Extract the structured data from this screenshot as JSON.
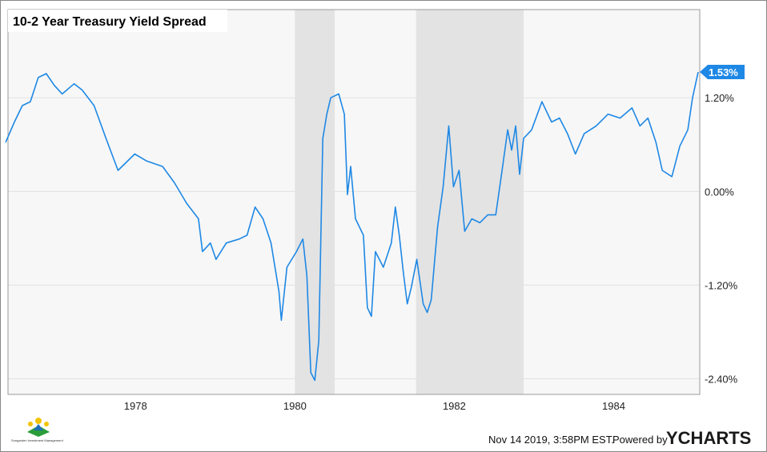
{
  "chart_data": {
    "type": "line",
    "title": "10-2 Year Treasury Yield Spread",
    "xlabel": "",
    "ylabel": "",
    "xlim": [
      1976.4,
      1985.08
    ],
    "ylim": [
      -2.6,
      2.33
    ],
    "grid": true,
    "x_ticks": [
      {
        "value": 1978,
        "label": "1978"
      },
      {
        "value": 1980,
        "label": "1980"
      },
      {
        "value": 1982,
        "label": "1982"
      },
      {
        "value": 1984,
        "label": "1984"
      }
    ],
    "y_ticks": [
      {
        "value": 1.2,
        "label": "1.20%"
      },
      {
        "value": 0,
        "label": "0.00%"
      },
      {
        "value": -1.2,
        "label": "-1.20%"
      },
      {
        "value": -2.4,
        "label": "-2.40%"
      }
    ],
    "recessions": [
      [
        1980.0,
        1980.5
      ],
      [
        1981.52,
        1982.87
      ]
    ],
    "series": [
      {
        "color": "#1e88e5",
        "x": [
          1976.37,
          1976.48,
          1976.58,
          1976.68,
          1976.78,
          1976.88,
          1976.98,
          1977.08,
          1977.23,
          1977.33,
          1977.48,
          1977.63,
          1977.78,
          1977.99,
          1978.14,
          1978.34,
          1978.49,
          1978.64,
          1978.79,
          1978.84,
          1978.94,
          1979.01,
          1979.14,
          1979.3,
          1979.4,
          1979.5,
          1979.6,
          1979.7,
          1979.8,
          1979.83,
          1979.9,
          1980.02,
          1980.1,
          1980.15,
          1980.2,
          1980.25,
          1980.3,
          1980.35,
          1980.4,
          1980.45,
          1980.55,
          1980.62,
          1980.66,
          1980.7,
          1980.76,
          1980.86,
          1980.91,
          1980.96,
          1981.01,
          1981.11,
          1981.21,
          1981.26,
          1981.31,
          1981.36,
          1981.41,
          1981.46,
          1981.53,
          1981.61,
          1981.66,
          1981.71,
          1981.79,
          1981.86,
          1981.93,
          1981.99,
          1982.06,
          1982.13,
          1982.22,
          1982.32,
          1982.42,
          1982.52,
          1982.6,
          1982.67,
          1982.72,
          1982.77,
          1982.82,
          1982.87,
          1982.97,
          1983.1,
          1983.22,
          1983.32,
          1983.42,
          1983.52,
          1983.63,
          1983.78,
          1983.93,
          1984.08,
          1984.23,
          1984.33,
          1984.43,
          1984.53,
          1984.61,
          1984.73,
          1984.83,
          1984.93,
          1984.99,
          1985.06
        ],
        "values": [
          0.63,
          0.89,
          1.1,
          1.15,
          1.46,
          1.51,
          1.36,
          1.25,
          1.38,
          1.3,
          1.1,
          0.68,
          0.27,
          0.48,
          0.39,
          0.32,
          0.11,
          -0.15,
          -0.35,
          -0.77,
          -0.66,
          -0.87,
          -0.66,
          -0.61,
          -0.56,
          -0.2,
          -0.35,
          -0.66,
          -1.28,
          -1.65,
          -0.97,
          -0.77,
          -0.61,
          -1.08,
          -2.32,
          -2.42,
          -1.91,
          0.68,
          0.99,
          1.2,
          1.25,
          0.99,
          -0.04,
          0.32,
          -0.35,
          -0.56,
          -1.49,
          -1.6,
          -0.77,
          -0.97,
          -0.66,
          -0.2,
          -0.56,
          -1.03,
          -1.44,
          -1.23,
          -0.87,
          -1.44,
          -1.55,
          -1.39,
          -0.46,
          0.06,
          0.84,
          0.06,
          0.27,
          -0.51,
          -0.35,
          -0.4,
          -0.3,
          -0.3,
          0.27,
          0.79,
          0.53,
          0.84,
          0.22,
          0.68,
          0.79,
          1.15,
          0.89,
          0.94,
          0.74,
          0.48,
          0.74,
          0.84,
          0.99,
          0.94,
          1.07,
          0.84,
          0.94,
          0.63,
          0.27,
          0.19,
          0.58,
          0.79,
          1.2,
          1.53
        ]
      }
    ],
    "last_value_label": "1.53%"
  },
  "footer": {
    "timestamp": "Nov 14 2019, 3:58PM EST.",
    "powered_by": "Powered by",
    "brand": "YCHARTS",
    "logo_text": "Sungarden Investment Management"
  },
  "colors": {
    "line": "#1e88e5",
    "recession": "#e3e3e3",
    "plot_bg": "#f7f7f7",
    "brand": "#1e88e5"
  }
}
